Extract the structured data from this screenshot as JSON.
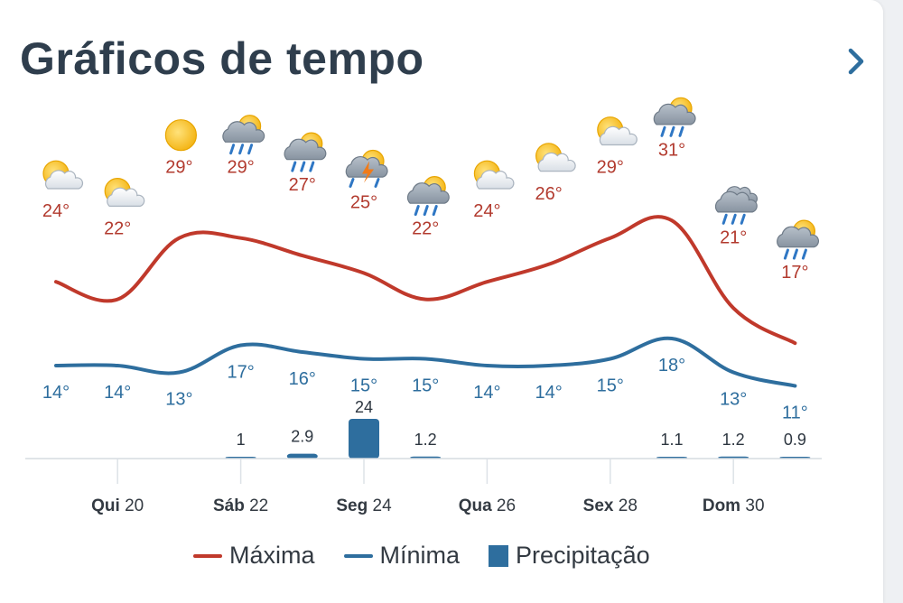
{
  "header": {
    "title": "Gráficos de tempo",
    "next_icon": "chevron-right-icon"
  },
  "colors": {
    "max_line": "#c0392b",
    "min_line": "#2e6e9e",
    "max_label": "#b23a2e",
    "min_label": "#2e6e9e",
    "precip_bar": "#2e6e9e",
    "title": "#2f3e4d",
    "axis_label": "#333a42"
  },
  "legend": {
    "max_label": "Máxima",
    "min_label": "Mínima",
    "precip_label": "Precipitação"
  },
  "chart_data": {
    "type": "line",
    "title": "Gráficos de tempo",
    "x_tick_labels": [
      {
        "bold": "Qui",
        "num": "20",
        "day_index": 1
      },
      {
        "bold": "Sáb",
        "num": "22",
        "day_index": 3
      },
      {
        "bold": "Seg",
        "num": "24",
        "day_index": 5
      },
      {
        "bold": "Qua",
        "num": "26",
        "day_index": 7
      },
      {
        "bold": "Sex",
        "num": "28",
        "day_index": 9
      },
      {
        "bold": "Dom",
        "num": "30",
        "day_index": 11
      }
    ],
    "days": [
      {
        "icon": "partly-cloudy-icon",
        "max": 24,
        "min": 14,
        "precip": null
      },
      {
        "icon": "partly-cloudy-icon",
        "max": 22,
        "min": 14,
        "precip": null
      },
      {
        "icon": "sun-icon",
        "max": 29,
        "min": 13,
        "precip": null
      },
      {
        "icon": "sun-cloud-rain-icon",
        "max": 29,
        "min": 17,
        "precip": 1
      },
      {
        "icon": "sun-cloud-rain-icon",
        "max": 27,
        "min": 16,
        "precip": 2.9
      },
      {
        "icon": "thunderstorm-icon",
        "max": 25,
        "min": 15,
        "precip": 24
      },
      {
        "icon": "sun-cloud-rain-icon",
        "max": 22,
        "min": 15,
        "precip": 1.2
      },
      {
        "icon": "partly-cloudy-icon",
        "max": 24,
        "min": 14,
        "precip": null
      },
      {
        "icon": "partly-cloudy-icon",
        "max": 26,
        "min": 14,
        "precip": null
      },
      {
        "icon": "partly-cloudy-icon",
        "max": 29,
        "min": 15,
        "precip": null
      },
      {
        "icon": "sun-cloud-rain-icon",
        "max": 31,
        "min": 18,
        "precip": 1.1
      },
      {
        "icon": "cloud-rain-icon",
        "max": 21,
        "min": 13,
        "precip": 1.2
      },
      {
        "icon": "sun-cloud-rain-icon",
        "max": 17,
        "min": 11,
        "precip": 0.9
      }
    ],
    "precip_labels": [
      "",
      "",
      "",
      "1",
      "2.9",
      "24",
      "1.2",
      "",
      "",
      "",
      "1.1",
      "1.2",
      "0.9"
    ],
    "series": [
      {
        "name": "Máxima",
        "values": [
          24,
          22,
          29,
          29,
          27,
          25,
          22,
          24,
          26,
          29,
          31,
          21,
          17
        ]
      },
      {
        "name": "Mínima",
        "values": [
          14,
          14,
          13,
          17,
          16,
          15,
          15,
          14,
          14,
          15,
          18,
          13,
          11
        ]
      },
      {
        "name": "Precipitação",
        "values": [
          0,
          0,
          0,
          1,
          2.9,
          24,
          1.2,
          0,
          0,
          0,
          1.1,
          1.2,
          0.9
        ]
      }
    ]
  }
}
